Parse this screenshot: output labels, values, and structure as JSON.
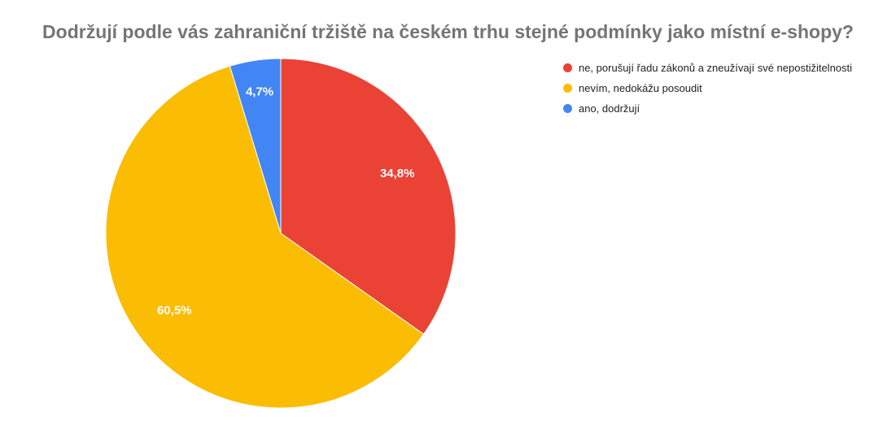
{
  "chart_data": {
    "type": "pie",
    "title": "Dodržují podle vás zahraniční tržiště na českém trhu stejné podmínky jako místní e-shopy?",
    "legend_position": "right",
    "slices": [
      {
        "label": "ne, porušují řadu zákonů a zneužívají své nepostižitelnosti",
        "value": 34.8,
        "display": "34,8%",
        "color": "#EA4335"
      },
      {
        "label": "nevím, nedokážu posoudit",
        "value": 60.5,
        "display": "60,5%",
        "color": "#FBBC04"
      },
      {
        "label": "ano, dodržují",
        "value": 4.7,
        "display": "4,7%",
        "color": "#4285F4"
      }
    ]
  }
}
